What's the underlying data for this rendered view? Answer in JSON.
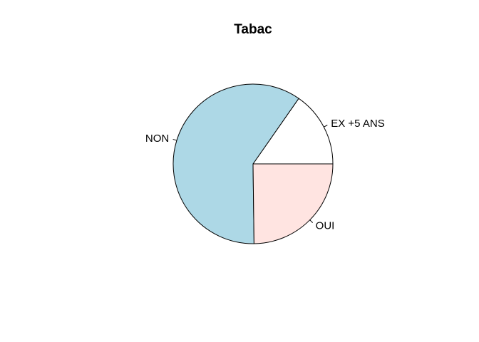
{
  "chart_data": {
    "type": "pie",
    "title": "Tabac",
    "categories": [
      "EX +5 ANS",
      "NON",
      "OUI"
    ],
    "values": [
      15.3,
      59.9,
      24.8
    ],
    "colors": [
      "#FFFFFF",
      "#ADD8E6",
      "#FFE4E1"
    ],
    "start_angle_deg": 0,
    "direction": "counterclockwise"
  }
}
